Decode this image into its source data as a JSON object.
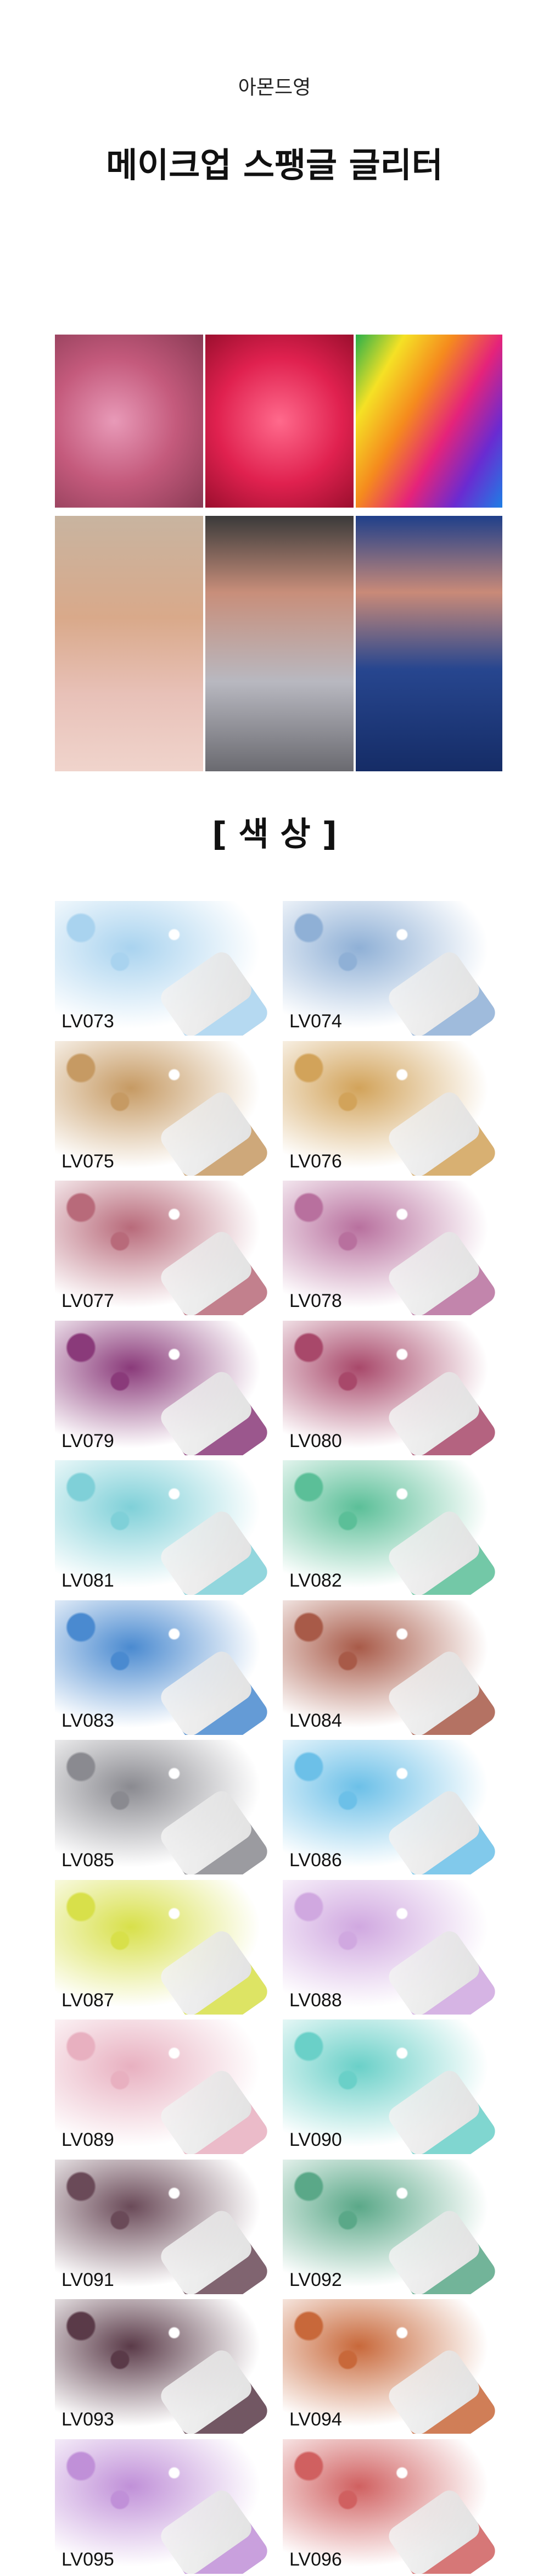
{
  "header": {
    "brand": "아몬드영",
    "title": "메이크업 스팽글 글리터"
  },
  "section_title": "[ 색 상 ]",
  "colors": [
    "LV073",
    "LV074",
    "LV075",
    "LV076",
    "LV077",
    "LV078",
    "LV079",
    "LV080",
    "LV081",
    "LV082",
    "LV083",
    "LV084",
    "LV085",
    "LV086",
    "LV087",
    "LV088",
    "LV089",
    "LV090",
    "LV091",
    "LV092",
    "LV093",
    "LV094",
    "LV095",
    "LV096"
  ]
}
